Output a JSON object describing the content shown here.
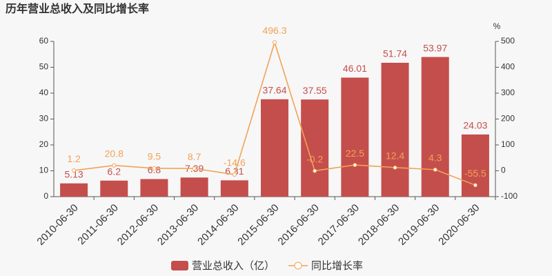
{
  "chart_data": {
    "type": "bar",
    "title": "历年营业总收入及同比增长率",
    "y2_unit": "%",
    "categories": [
      "2010-06-30",
      "2011-06-30",
      "2012-06-30",
      "2013-06-30",
      "2014-06-30",
      "2015-06-30",
      "2016-06-30",
      "2017-06-30",
      "2018-06-30",
      "2019-06-30",
      "2020-06-30"
    ],
    "series": [
      {
        "name": "营业总收入（亿）",
        "type": "bar",
        "color": "#c44e4c",
        "values": [
          5.13,
          6.2,
          6.8,
          7.39,
          6.31,
          37.64,
          37.55,
          46.01,
          51.74,
          53.97,
          24.03
        ]
      },
      {
        "name": "同比增长率",
        "type": "line",
        "axis": "y2",
        "color": "#f2a255",
        "values": [
          1.2,
          20.8,
          9.5,
          8.7,
          -14.6,
          496.3,
          -0.2,
          22.5,
          12.4,
          4.3,
          -55.5
        ]
      }
    ],
    "ylim": [
      0,
      60
    ],
    "yticks": [
      0,
      10,
      20,
      30,
      40,
      50,
      60
    ],
    "y2lim": [
      -100,
      500
    ],
    "y2ticks": [
      -100,
      0,
      100,
      200,
      300,
      400,
      500
    ],
    "grid": false,
    "legend": "bottom"
  }
}
